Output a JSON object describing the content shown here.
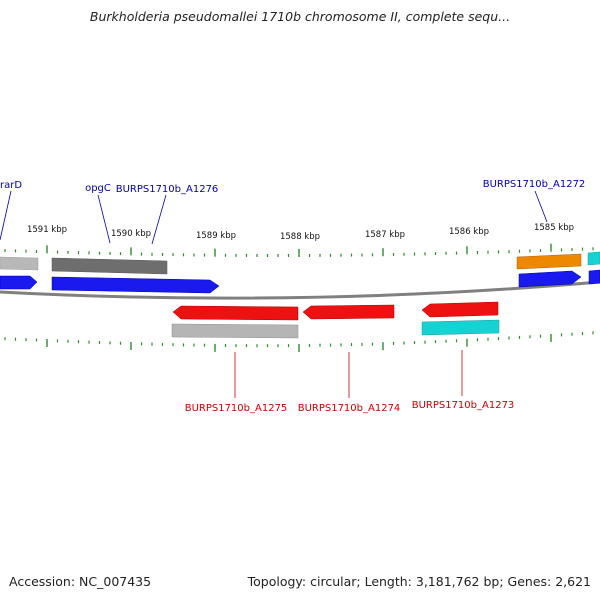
{
  "title": "Burkholderia pseudomallei 1710b chromosome II, complete sequ...",
  "footer": {
    "accession_label": "Accession:",
    "accession": "NC_007435",
    "topology_text": "Topology: circular; Length: 3,181,762 bp; Genes: 2,621"
  },
  "colors": {
    "backbone": "#808080",
    "tick": "#2e8b2e",
    "forward_label": "#0000aa",
    "reverse_label": "#cc0000",
    "cds_blue": "#1a1aee",
    "cds_red": "#ee1111",
    "gray": "#b5b5b5",
    "dark_gray": "#707070",
    "orange": "#ee8800",
    "cyan": "#17d2d2"
  },
  "scale": {
    "unit": "kbp",
    "labels": [
      "1591 kbp",
      "1590 kbp",
      "1589 kbp",
      "1588 kbp",
      "1587 kbp",
      "1586 kbp",
      "1585 kbp"
    ]
  },
  "gene_labels": {
    "rarD": "rarD",
    "opgC": "opgC",
    "a1276": "BURPS1710b_A1276",
    "a1272": "BURPS1710b_A1272",
    "a1275": "BURPS1710b_A1275",
    "a1274": "BURPS1710b_A1274",
    "a1273": "BURPS1710b_A1273"
  }
}
